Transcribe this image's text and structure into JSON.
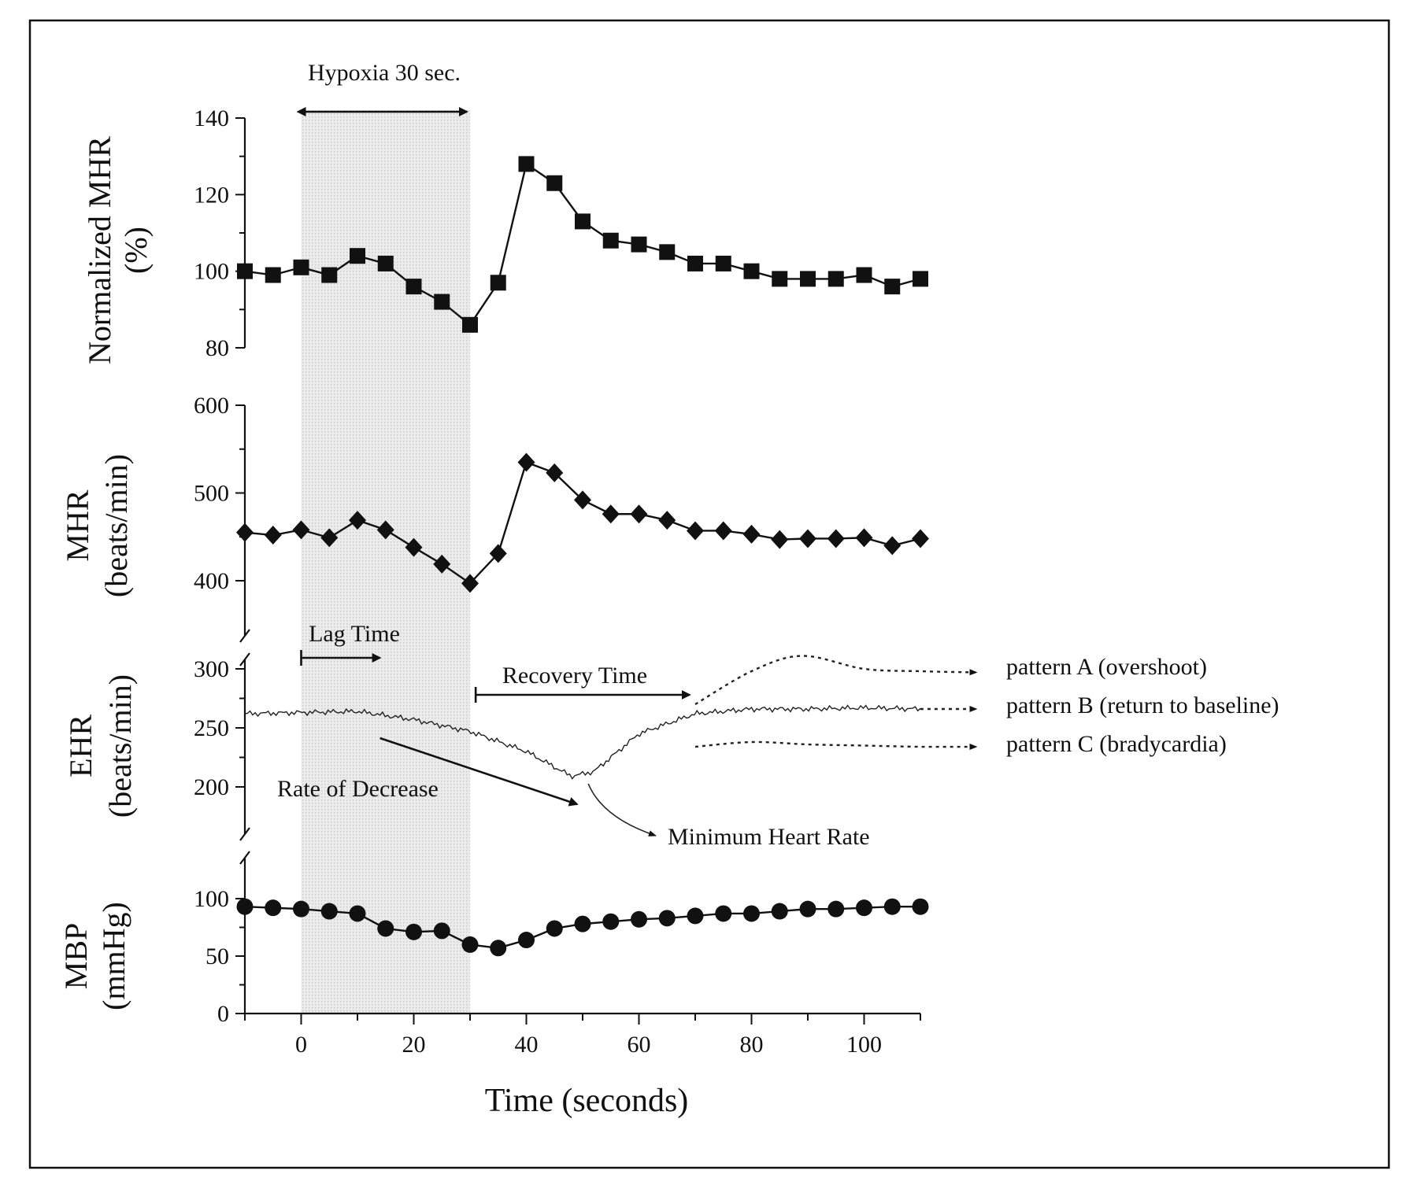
{
  "chart_data": {
    "type": "line",
    "xlabel": "Time (seconds)",
    "xlim": [
      -10,
      110
    ],
    "xticks": [
      0,
      20,
      40,
      60,
      80,
      100
    ],
    "shaded_region": {
      "x0": 0,
      "x1": 30
    },
    "annotations": {
      "hypoxia": "Hypoxia 30 sec.",
      "lag_time": "Lag Time",
      "recovery_time": "Recovery Time",
      "rate_of_decrease": "Rate of Decrease",
      "minimum_heart_rate": "Minimum Heart Rate",
      "pattern_a": "pattern A (overshoot)",
      "pattern_b": "pattern B (return to baseline)",
      "pattern_c": "pattern C (bradycardia)"
    },
    "panels": [
      {
        "id": "nmhr",
        "ylabel": [
          "Normalized MHR",
          "(%)"
        ],
        "ylim": [
          80,
          140
        ],
        "yticks": [
          80,
          100,
          120,
          140
        ],
        "marker": "square",
        "x": [
          -10,
          -5,
          0,
          5,
          10,
          15,
          20,
          25,
          30,
          35,
          40,
          45,
          50,
          55,
          60,
          65,
          70,
          75,
          80,
          85,
          90,
          95,
          100,
          105,
          110
        ],
        "values": [
          100,
          99,
          101,
          99,
          104,
          102,
          96,
          92,
          86,
          97,
          128,
          123,
          113,
          108,
          107,
          105,
          102,
          102,
          100,
          98,
          98,
          98,
          99,
          96,
          98
        ]
      },
      {
        "id": "mhr",
        "ylabel": [
          "MHR",
          "(beats/min)"
        ],
        "ylim": [
          400,
          600
        ],
        "yticks": [
          400,
          500,
          600
        ],
        "marker": "diamond",
        "x": [
          -10,
          -5,
          0,
          5,
          10,
          15,
          20,
          25,
          30,
          35,
          40,
          45,
          50,
          55,
          60,
          65,
          70,
          75,
          80,
          85,
          90,
          95,
          100,
          105,
          110
        ],
        "values": [
          455,
          452,
          458,
          449,
          469,
          458,
          438,
          419,
          397,
          431,
          535,
          523,
          492,
          476,
          476,
          469,
          457,
          457,
          453,
          447,
          448,
          448,
          449,
          440,
          448
        ]
      },
      {
        "id": "ehr",
        "ylabel": [
          "EHR",
          "(beats/min)"
        ],
        "ylim": [
          200,
          300
        ],
        "yticks": [
          200,
          250,
          300
        ],
        "marker": "trace",
        "trace": {
          "x": [
            -10,
            0,
            10,
            20,
            30,
            40,
            48,
            52,
            60,
            70,
            80,
            90,
            100,
            110
          ],
          "values": [
            262,
            263,
            264,
            257,
            247,
            230,
            209,
            213,
            245,
            262,
            266,
            266,
            267,
            266
          ]
        },
        "pattern_a": {
          "x": [
            70,
            80,
            89,
            100,
            110,
            120
          ],
          "values": [
            270,
            298,
            311,
            300,
            298,
            297
          ]
        },
        "pattern_b": {
          "x": [
            110,
            120
          ],
          "values": [
            266,
            266
          ]
        },
        "pattern_c": {
          "x": [
            70,
            80,
            90,
            100,
            110,
            120
          ],
          "values": [
            234,
            238,
            236,
            235,
            234,
            234
          ]
        }
      },
      {
        "id": "mbp",
        "ylabel": [
          "MBP",
          "(mmHg)"
        ],
        "ylim": [
          0,
          100
        ],
        "yticks": [
          0,
          50,
          100
        ],
        "marker": "circle",
        "x": [
          -10,
          -5,
          0,
          5,
          10,
          15,
          20,
          25,
          30,
          35,
          40,
          45,
          50,
          55,
          60,
          65,
          70,
          75,
          80,
          85,
          90,
          95,
          100,
          105,
          110
        ],
        "values": [
          93,
          92,
          91,
          89,
          87,
          74,
          71,
          72,
          60,
          57,
          64,
          74,
          78,
          80,
          82,
          83,
          85,
          87,
          87,
          89,
          91,
          91,
          92,
          93,
          93
        ]
      }
    ]
  }
}
